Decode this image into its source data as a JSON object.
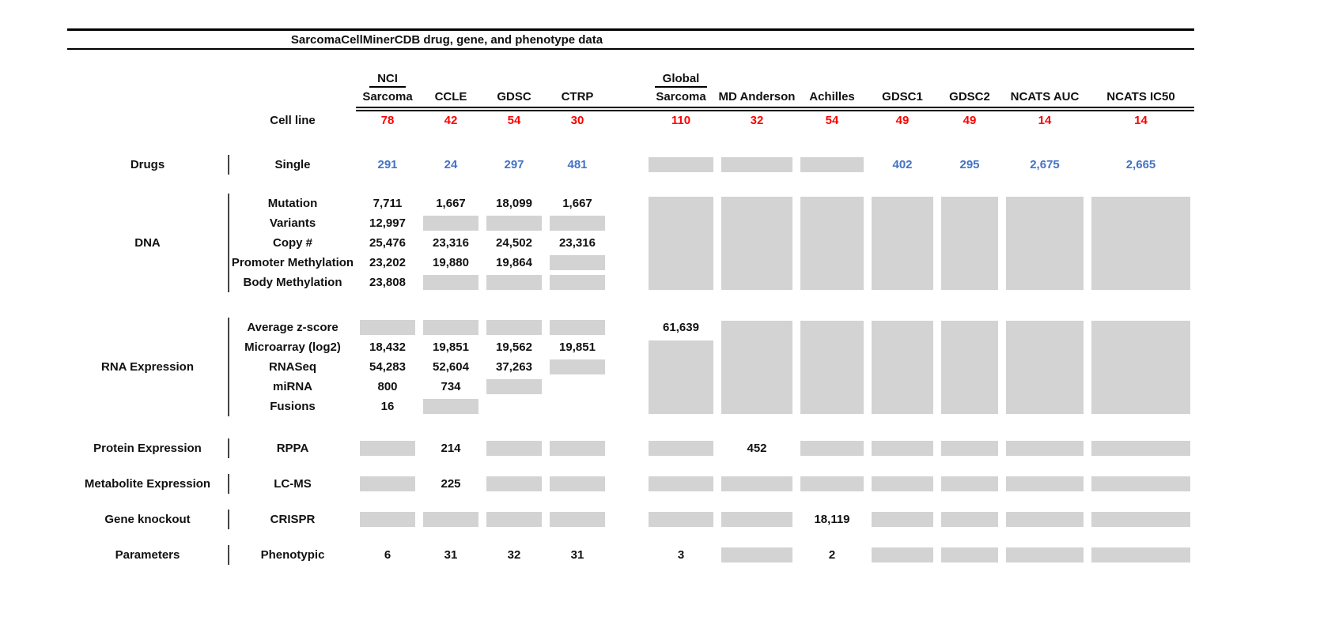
{
  "chart_data": {
    "type": "table",
    "title": "SarcomaCellMinerCDB drug, gene, and phenotype data",
    "column_groups": [
      {
        "label": "NCI",
        "col": 0
      },
      {
        "label": "Global",
        "col": 4
      }
    ],
    "columns": [
      "Sarcoma",
      "CCLE",
      "GDSC",
      "CTRP",
      "Sarcoma",
      "MD Anderson",
      "Achilles",
      "GDSC1",
      "GDSC2",
      "NCATS AUC",
      "NCATS IC50"
    ],
    "cell_line_row": {
      "label": "Cell line",
      "counts": [
        "78",
        "42",
        "54",
        "30",
        "110",
        "32",
        "54",
        "49",
        "49",
        "14",
        "14"
      ]
    },
    "groups": [
      {
        "category": "Drugs",
        "number_color": "#4472c4",
        "rows": [
          {
            "label": "Single",
            "cells": [
              "291",
              "24",
              "297",
              "481",
              "g",
              "g",
              "g",
              "402",
              "295",
              "2,675",
              "2,665"
            ]
          }
        ]
      },
      {
        "category": "DNA",
        "tall_gray_cols": [
          {
            "col": 4,
            "start_row": 0
          },
          {
            "col": 5,
            "start_row": 0
          },
          {
            "col": 6,
            "start_row": 0
          },
          {
            "col": 7,
            "start_row": 0
          },
          {
            "col": 8,
            "start_row": 0
          },
          {
            "col": 9,
            "start_row": 0
          },
          {
            "col": 10,
            "start_row": 0
          }
        ],
        "rows": [
          {
            "label": "Mutation",
            "cells": [
              "7,711",
              "1,667",
              "18,099",
              "1,667"
            ]
          },
          {
            "label": "Variants",
            "cells": [
              "12,997",
              "g",
              "g",
              "g"
            ]
          },
          {
            "label": "Copy #",
            "cells": [
              "25,476",
              "23,316",
              "24,502",
              "23,316"
            ]
          },
          {
            "label": "Promoter Methylation",
            "cells": [
              "23,202",
              "19,880",
              "19,864",
              "g"
            ]
          },
          {
            "label": "Body Methylation",
            "cells": [
              "23,808",
              "g",
              "g",
              "g"
            ]
          }
        ]
      },
      {
        "category": "RNA Expression",
        "tall_gray_cols": [
          {
            "col": 4,
            "start_row": 1
          },
          {
            "col": 5,
            "start_row": 0
          },
          {
            "col": 6,
            "start_row": 0
          },
          {
            "col": 7,
            "start_row": 0
          },
          {
            "col": 8,
            "start_row": 0
          },
          {
            "col": 9,
            "start_row": 0
          },
          {
            "col": 10,
            "start_row": 0
          }
        ],
        "rows": [
          {
            "label": "Average z-score",
            "cells": [
              "g",
              "g",
              "g",
              "g",
              "61,639"
            ]
          },
          {
            "label": "Microarray (log2)",
            "cells": [
              "18,432",
              "19,851",
              "19,562",
              "19,851"
            ]
          },
          {
            "label": "RNASeq",
            "cells": [
              "54,283",
              "52,604",
              "37,263",
              "g"
            ]
          },
          {
            "label": "miRNA",
            "cells": [
              "800",
              "734",
              "g"
            ]
          },
          {
            "label": "Fusions",
            "cells": [
              "16",
              "g"
            ]
          }
        ]
      },
      {
        "category": "Protein Expression",
        "rows": [
          {
            "label": "RPPA",
            "cells": [
              "g",
              "214",
              "g",
              "g",
              "g",
              "452",
              "g",
              "g",
              "g",
              "g",
              "g"
            ]
          }
        ]
      },
      {
        "category": "Metabolite Expression",
        "rows": [
          {
            "label": "LC-MS",
            "cells": [
              "g",
              "225",
              "g",
              "g",
              "g",
              "g",
              "g",
              "g",
              "g",
              "g",
              "g"
            ]
          }
        ]
      },
      {
        "category": "Gene knockout",
        "rows": [
          {
            "label": "CRISPR",
            "cells": [
              "g",
              "g",
              "g",
              "g",
              "g",
              "g",
              "18,119",
              "g",
              "g",
              "g",
              "g"
            ]
          }
        ]
      },
      {
        "category": "Parameters",
        "rows": [
          {
            "label": "Phenotypic",
            "cells": [
              "6",
              "31",
              "32",
              "31",
              "3",
              "g",
              "2",
              "g",
              "g",
              "g",
              "g"
            ]
          }
        ]
      }
    ],
    "styles": {
      "count_color": "#ff0000",
      "drug_color": "#4472c4",
      "gray_box_color": "#d3d3d3"
    }
  }
}
